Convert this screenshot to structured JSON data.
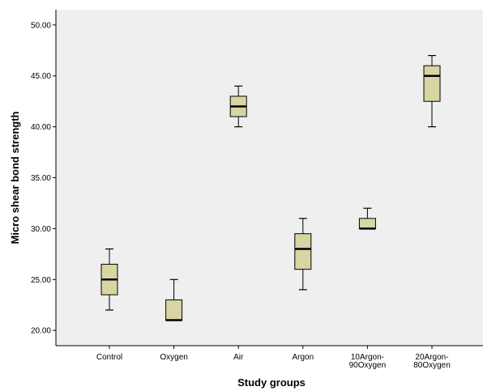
{
  "chart_data": {
    "type": "boxplot",
    "title": "",
    "xlabel": "Study groups",
    "ylabel": "Micro shear bond strength",
    "ylim": [
      18.5,
      51.5
    ],
    "yticks": [
      "20.00",
      "25.00",
      "30.00",
      "35.00",
      "40.00",
      "45.00",
      "50.00"
    ],
    "ytick_values": [
      20,
      25,
      30,
      35,
      40,
      45,
      50
    ],
    "grid": false,
    "box_color": "#d8d4a4",
    "plot_background": "#efefef",
    "categories": [
      {
        "label_lines": [
          "Control"
        ],
        "min": 22,
        "q1": 23.5,
        "median": 25,
        "q3": 26.5,
        "max": 28
      },
      {
        "label_lines": [
          "Oxygen"
        ],
        "min": 21,
        "q1": 21,
        "median": 21,
        "q3": 23,
        "max": 25
      },
      {
        "label_lines": [
          "Air"
        ],
        "min": 40,
        "q1": 41,
        "median": 42,
        "q3": 43,
        "max": 44
      },
      {
        "label_lines": [
          "Argon"
        ],
        "min": 24,
        "q1": 26,
        "median": 28,
        "q3": 29.5,
        "max": 31
      },
      {
        "label_lines": [
          "10Argon-",
          "90Oxygen"
        ],
        "min": 30,
        "q1": 30,
        "median": 30,
        "q3": 31,
        "max": 32
      },
      {
        "label_lines": [
          "20Argon-",
          "80Oxygen"
        ],
        "min": 40,
        "q1": 42.5,
        "median": 45,
        "q3": 46,
        "max": 47
      }
    ]
  }
}
